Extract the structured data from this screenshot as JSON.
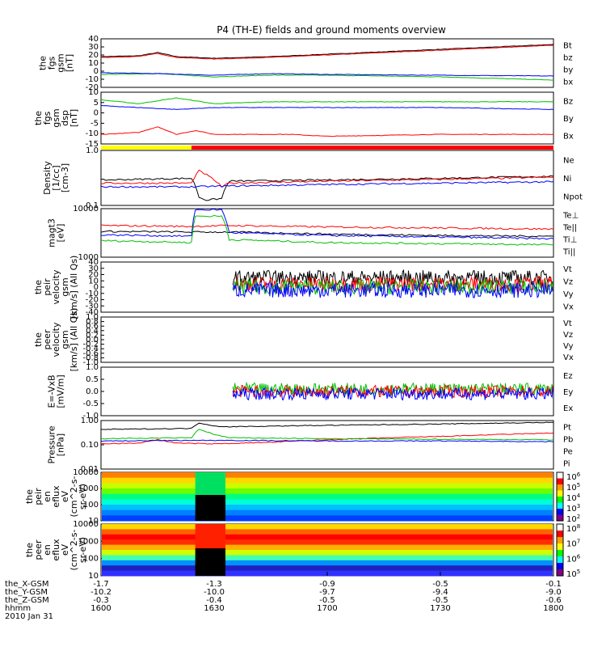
{
  "title": "P4 (TH-E) fields and ground moments overview",
  "chart_data": {
    "type": "line",
    "time_axis": {
      "tick_labels": [
        "1600",
        "1630",
        "1700",
        "1730",
        "1800"
      ],
      "range": [
        "16:00",
        "18:00"
      ]
    },
    "panels": [
      {
        "ylabel": [
          "the",
          "fgs",
          "gsm",
          "[nT]"
        ],
        "ticks": [
          "40",
          "30",
          "20",
          "10",
          "0",
          "-10",
          "-20"
        ],
        "ylim": [
          -20,
          40
        ],
        "legend": [
          {
            "label": "Bt",
            "color": "#000000"
          },
          {
            "label": "bz",
            "color": "#ff0000"
          },
          {
            "label": "by",
            "color": "#00c000"
          },
          {
            "label": "bx",
            "color": "#0000ff"
          }
        ],
        "series": [
          {
            "name": "Bt",
            "x": [
              1600,
              1610,
              1615,
              1620,
              1630,
              1645,
              1700,
              1715,
              1730,
              1745,
              1800
            ],
            "y": [
              18,
              19,
              23,
              18,
              16,
              18,
              21,
              24,
              27,
              30,
              33
            ]
          },
          {
            "name": "bz",
            "x": [
              1600,
              1610,
              1615,
              1620,
              1630,
              1645,
              1700,
              1715,
              1730,
              1745,
              1800
            ],
            "y": [
              17,
              18,
              22,
              17,
              15,
              17,
              20,
              23,
              26,
              29,
              32
            ]
          },
          {
            "name": "by",
            "x": [
              1600,
              1615,
              1630,
              1645,
              1700,
              1730,
              1800
            ],
            "y": [
              -4,
              -3,
              -7,
              -5,
              -5,
              -7,
              -11
            ]
          },
          {
            "name": "bx",
            "x": [
              1600,
              1615,
              1630,
              1645,
              1700,
              1730,
              1800
            ],
            "y": [
              -2,
              -3,
              -5,
              -3,
              -4,
              -5,
              -6
            ]
          }
        ]
      },
      {
        "ylabel": [
          "the",
          "fgs",
          "gsm",
          "dsp",
          "[nT]"
        ],
        "ticks": [
          "10",
          "5",
          "0",
          "-5",
          "-10",
          "-15"
        ],
        "ylim": [
          -17,
          10
        ],
        "legend": [
          {
            "label": "Bz",
            "color": "#ff0000"
          },
          {
            "label": "By",
            "color": "#00c000"
          },
          {
            "label": "Bx",
            "color": "#0000ff"
          }
        ],
        "series": [
          {
            "name": "Bz",
            "x": [
              1600,
              1610,
              1615,
              1620,
              1625,
              1630,
              1640,
              1650,
              1700,
              1730,
              1800
            ],
            "y": [
              -12,
              -11,
              -8,
              -12,
              -10,
              -12,
              -12,
              -12,
              -13,
              -12,
              -12
            ]
          },
          {
            "name": "By",
            "x": [
              1600,
              1610,
              1620,
              1630,
              1645,
              1700,
              1730,
              1800
            ],
            "y": [
              6,
              4,
              7,
              4,
              5,
              5,
              5,
              5
            ]
          },
          {
            "name": "Bx",
            "x": [
              1600,
              1610,
              1620,
              1630,
              1645,
              1700,
              1730,
              1800
            ],
            "y": [
              3,
              2,
              1,
              2,
              2,
              2,
              2,
              1
            ]
          }
        ]
      },
      {
        "ylabel": [
          "Density",
          "[1/cc]",
          "[cm-3]"
        ],
        "ticks": [
          "1.0",
          "0.1"
        ],
        "scale": "log",
        "ylim": [
          0.1,
          1.5
        ],
        "status_bar": [
          {
            "from": 1600,
            "to": 1624,
            "color": "#ffff00"
          },
          {
            "from": 1624,
            "to": 1800,
            "color": "#ff0000"
          }
        ],
        "legend": [
          {
            "label": "Ne",
            "color": "#ff0000"
          },
          {
            "label": "Ni",
            "color": "#000000"
          },
          {
            "label": "Npot",
            "color": "#0000ff"
          }
        ],
        "series": [
          {
            "name": "Ni",
            "x": [
              1600,
              1624,
              1626,
              1628,
              1632,
              1634,
              1700,
              1730,
              1800
            ],
            "y": [
              0.35,
              0.38,
              0.15,
              0.13,
              0.14,
              0.33,
              0.35,
              0.38,
              0.42
            ]
          },
          {
            "name": "Ne",
            "x": [
              1600,
              1624,
              1626,
              1628,
              1632,
              1634,
              1700,
              1730,
              1800
            ],
            "y": [
              0.3,
              0.3,
              0.55,
              0.45,
              0.25,
              0.3,
              0.33,
              0.36,
              0.4
            ]
          },
          {
            "name": "Npot",
            "x": [
              1600,
              1624,
              1634,
              1700,
              1730,
              1800
            ],
            "y": [
              0.25,
              0.25,
              0.26,
              0.28,
              0.3,
              0.32
            ]
          }
        ]
      },
      {
        "ylabel": [
          "magt3",
          "[eV]"
        ],
        "ticks": [
          "10000",
          "1000"
        ],
        "scale": "log",
        "ylim": [
          1000,
          10000
        ],
        "legend": [
          {
            "label": "Te⊥",
            "color": "#ff0000"
          },
          {
            "label": "Te||",
            "color": "#000000"
          },
          {
            "label": "Ti⊥",
            "color": "#0000ff"
          },
          {
            "label": "Ti||",
            "color": "#00c000"
          }
        ],
        "series": [
          {
            "name": "Te⊥",
            "x": [
              1600,
              1624,
              1634,
              1700,
              1730,
              1800
            ],
            "y": [
              4500,
              4300,
              4500,
              4200,
              4000,
              3800
            ]
          },
          {
            "name": "Te||",
            "x": [
              1600,
              1624,
              1634,
              1700,
              1730,
              1800
            ],
            "y": [
              3400,
              3300,
              3300,
              3000,
              2800,
              2700
            ]
          },
          {
            "name": "Ti⊥",
            "x": [
              1600,
              1624,
              1625,
              1632,
              1634,
              1700,
              1730,
              1800
            ],
            "y": [
              2900,
              2700,
              9500,
              9500,
              3200,
              2800,
              2600,
              2400
            ]
          },
          {
            "name": "Ti||",
            "x": [
              1600,
              1624,
              1625,
              1632,
              1634,
              1700,
              1730,
              1800
            ],
            "y": [
              2200,
              2000,
              7000,
              7000,
              2300,
              2000,
              1900,
              1800
            ]
          }
        ]
      },
      {
        "ylabel": [
          "the",
          "peir",
          "velocity",
          "gsm",
          "[km/s] (All Qs)"
        ],
        "ticks": [
          "40",
          "30",
          "20",
          "10",
          "0",
          "-10",
          "-20",
          "-30",
          "-40"
        ],
        "ylim": [
          -40,
          40
        ],
        "legend": [
          {
            "label": "Vt",
            "color": "#000000"
          },
          {
            "label": "Vz",
            "color": "#ff0000"
          },
          {
            "label": "Vy",
            "color": "#00c000"
          },
          {
            "label": "Vx",
            "color": "#0000ff"
          }
        ],
        "series": [
          {
            "name": "Vt",
            "x": [
              1635,
              1800
            ],
            "y": [
              15,
              15
            ]
          },
          {
            "name": "Vz",
            "x": [
              1635,
              1800
            ],
            "y": [
              5,
              5
            ]
          },
          {
            "name": "Vy",
            "x": [
              1635,
              1800
            ],
            "y": [
              0,
              0
            ]
          },
          {
            "name": "Vx",
            "x": [
              1635,
              1800
            ],
            "y": [
              -5,
              -5
            ]
          }
        ]
      },
      {
        "ylabel": [
          "the",
          "peer",
          "velocity",
          "gsm",
          "[km/s] (All Qs)"
        ],
        "ticks": [
          "1.0",
          "0.8",
          "0.6",
          "0.4",
          "0.2",
          "0.0",
          "-0.2",
          "-0.4",
          "-0.6",
          "-0.8",
          "-1.0"
        ],
        "ylim": [
          -1,
          1
        ],
        "legend": [
          {
            "label": "Vt",
            "color": "#000000"
          },
          {
            "label": "Vz",
            "color": "#ff0000"
          },
          {
            "label": "Vy",
            "color": "#00c000"
          },
          {
            "label": "Vx",
            "color": "#0000ff"
          }
        ],
        "series": []
      },
      {
        "ylabel": [
          "E=-VxB",
          "[mV/m]"
        ],
        "ticks": [
          "1.0",
          "0.5",
          "0.0",
          "-0.5",
          "-1.0"
        ],
        "ylim": [
          -1,
          1
        ],
        "legend": [
          {
            "label": "Ez",
            "color": "#ff0000"
          },
          {
            "label": "Ey",
            "color": "#00c000"
          },
          {
            "label": "Ex",
            "color": "#0000ff"
          }
        ],
        "series": [
          {
            "name": "Ey",
            "x": [
              1635,
              1800
            ],
            "y": [
              0.1,
              0.1
            ]
          },
          {
            "name": "Ez",
            "x": [
              1635,
              1800
            ],
            "y": [
              0.0,
              0.0
            ]
          },
          {
            "name": "Ex",
            "x": [
              1635,
              1800
            ],
            "y": [
              -0.1,
              -0.1
            ]
          }
        ]
      },
      {
        "ylabel": [
          "Pressure",
          "[nPa]"
        ],
        "ticks": [
          "1.00",
          "0.10",
          "0.01"
        ],
        "scale": "log",
        "ylim": [
          0.01,
          1.2
        ],
        "legend": [
          {
            "label": "Pt",
            "color": "#000000"
          },
          {
            "label": "Pb",
            "color": "#ff0000"
          },
          {
            "label": "Pe",
            "color": "#00c000"
          },
          {
            "label": "Pi",
            "color": "#0000ff"
          }
        ],
        "series": [
          {
            "name": "Pt",
            "x": [
              1600,
              1624,
              1626,
              1630,
              1634,
              1700,
              1730,
              1800
            ],
            "y": [
              0.5,
              0.55,
              0.95,
              0.7,
              0.65,
              0.75,
              0.85,
              1.0
            ]
          },
          {
            "name": "Pb",
            "x": [
              1600,
              1610,
              1615,
              1620,
              1630,
              1645,
              1700,
              1730,
              1800
            ],
            "y": [
              0.12,
              0.13,
              0.18,
              0.13,
              0.12,
              0.14,
              0.18,
              0.25,
              0.35
            ]
          },
          {
            "name": "Pe",
            "x": [
              1600,
              1624,
              1626,
              1630,
              1634,
              1700,
              1730,
              1800
            ],
            "y": [
              0.2,
              0.22,
              0.5,
              0.3,
              0.22,
              0.2,
              0.19,
              0.18
            ]
          },
          {
            "name": "Pi",
            "x": [
              1600,
              1624,
              1634,
              1700,
              1730,
              1800
            ],
            "y": [
              0.16,
              0.17,
              0.17,
              0.16,
              0.16,
              0.15
            ]
          }
        ]
      },
      {
        "type": "heatmap",
        "ylabel": [
          "the",
          "peir",
          "en",
          "eflux",
          "eV",
          "(cm^2-s-",
          "sr-eV)"
        ],
        "ticks": [
          "10000",
          "1000",
          "100",
          "10"
        ],
        "colorbar_ticks": [
          "10^6",
          "10^5",
          "10^4",
          "10^3",
          "10^2"
        ]
      },
      {
        "type": "heatmap",
        "ylabel": [
          "the",
          "peer",
          "en",
          "eflux",
          "eV",
          "(cm^2-s-",
          "sr-eV)"
        ],
        "ticks": [
          "10000",
          "1000",
          "100",
          "10"
        ],
        "colorbar_ticks": [
          "10^8",
          "10^7",
          "10^6",
          "10^5"
        ]
      }
    ],
    "footer": {
      "rows": [
        {
          "label": "the_X-GSM",
          "values": [
            "-1.7",
            "-1.3",
            "-0.9",
            "-0.5",
            "-0.1"
          ]
        },
        {
          "label": "the_Y-GSM",
          "values": [
            "-10.2",
            "-10.0",
            "-9.7",
            "-9.4",
            "-9.0"
          ]
        },
        {
          "label": "the_Z-GSM",
          "values": [
            "-0.3",
            "-0.4",
            "-0.5",
            "-0.5",
            "-0.6"
          ]
        },
        {
          "label": "hhmm",
          "values": [
            "1600",
            "1630",
            "1700",
            "1730",
            "1800"
          ]
        }
      ],
      "date": "2010 Jan 31"
    }
  }
}
